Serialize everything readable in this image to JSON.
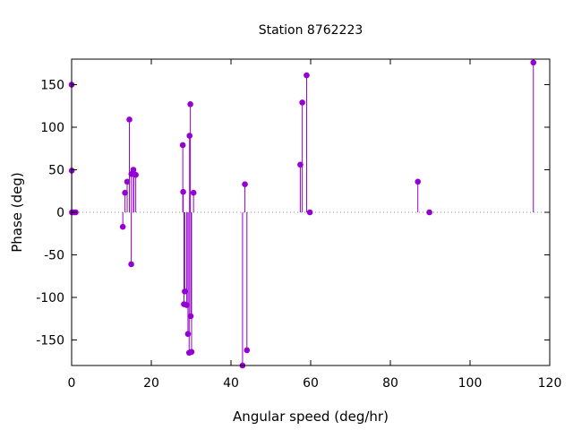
{
  "chart_data": {
    "type": "scatter",
    "style": "impulses-with-points",
    "title": "Station 8762223",
    "xlabel": "Angular speed (deg/hr)",
    "ylabel": "Phase (deg)",
    "xlim": [
      0,
      120
    ],
    "ylim": [
      -180,
      180
    ],
    "xticks": [
      0,
      20,
      40,
      60,
      80,
      100,
      120
    ],
    "yticks": [
      -150,
      -100,
      -50,
      0,
      50,
      100,
      150
    ],
    "grid": false,
    "zero_line": "dotted",
    "color": "#9400d3",
    "points": [
      {
        "x": 0.0,
        "y": 150
      },
      {
        "x": 0.04,
        "y": 49
      },
      {
        "x": 0.08,
        "y": 0
      },
      {
        "x": 0.5,
        "y": 0
      },
      {
        "x": 1.0,
        "y": 0
      },
      {
        "x": 12.85,
        "y": -17
      },
      {
        "x": 13.4,
        "y": 23
      },
      {
        "x": 13.94,
        "y": 36
      },
      {
        "x": 14.5,
        "y": 109
      },
      {
        "x": 14.96,
        "y": -61
      },
      {
        "x": 15.0,
        "y": 45
      },
      {
        "x": 15.5,
        "y": 50
      },
      {
        "x": 15.6,
        "y": 45
      },
      {
        "x": 16.1,
        "y": 44
      },
      {
        "x": 27.9,
        "y": 79
      },
      {
        "x": 28.0,
        "y": 24
      },
      {
        "x": 28.2,
        "y": -108
      },
      {
        "x": 28.4,
        "y": -93
      },
      {
        "x": 28.9,
        "y": -109
      },
      {
        "x": 29.2,
        "y": -143
      },
      {
        "x": 29.5,
        "y": -165
      },
      {
        "x": 29.6,
        "y": 90
      },
      {
        "x": 29.8,
        "y": 127
      },
      {
        "x": 29.9,
        "y": -122
      },
      {
        "x": 30.1,
        "y": -164
      },
      {
        "x": 30.6,
        "y": 23
      },
      {
        "x": 42.9,
        "y": -180
      },
      {
        "x": 43.5,
        "y": 33
      },
      {
        "x": 44.0,
        "y": -162
      },
      {
        "x": 57.4,
        "y": 56
      },
      {
        "x": 57.9,
        "y": 129
      },
      {
        "x": 58.98,
        "y": 161
      },
      {
        "x": 59.8,
        "y": 0
      },
      {
        "x": 86.9,
        "y": 36
      },
      {
        "x": 89.8,
        "y": 0
      },
      {
        "x": 115.9,
        "y": 176
      }
    ]
  }
}
